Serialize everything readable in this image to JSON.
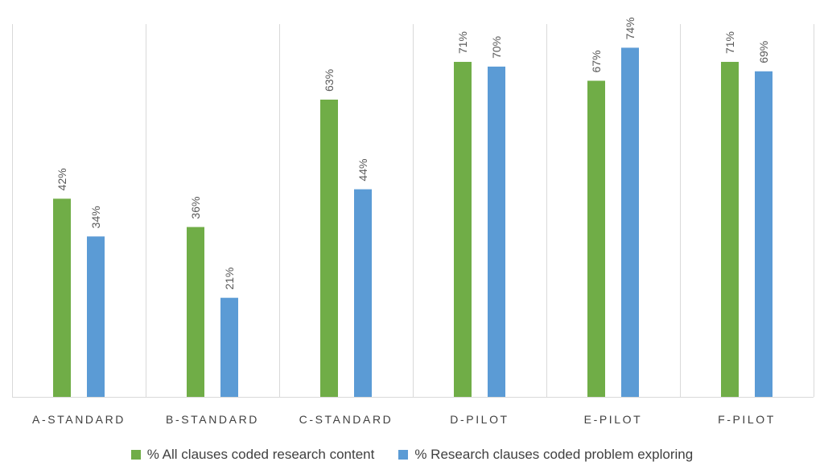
{
  "chart_data": {
    "type": "bar",
    "categories": [
      "A-STANDARD",
      "B-STANDARD",
      "C-STANDARD",
      "D-PILOT",
      "E-PILOT",
      "F-PILOT"
    ],
    "series": [
      {
        "name": "% All clauses coded research content",
        "values": [
          42,
          36,
          63,
          71,
          67,
          71
        ],
        "labels": [
          "42%",
          "36%",
          "63%",
          "71%",
          "67%",
          "71%"
        ],
        "color": "#70ad47"
      },
      {
        "name": "% Research clauses coded problem exploring",
        "values": [
          34,
          21,
          44,
          70,
          74,
          69
        ],
        "labels": [
          "34%",
          "21%",
          "44%",
          "70%",
          "74%",
          "69%"
        ],
        "color": "#5b9bd5"
      }
    ],
    "ylim": [
      0,
      80
    ],
    "grid": "vertical category separators",
    "legend": "bottom-center"
  }
}
